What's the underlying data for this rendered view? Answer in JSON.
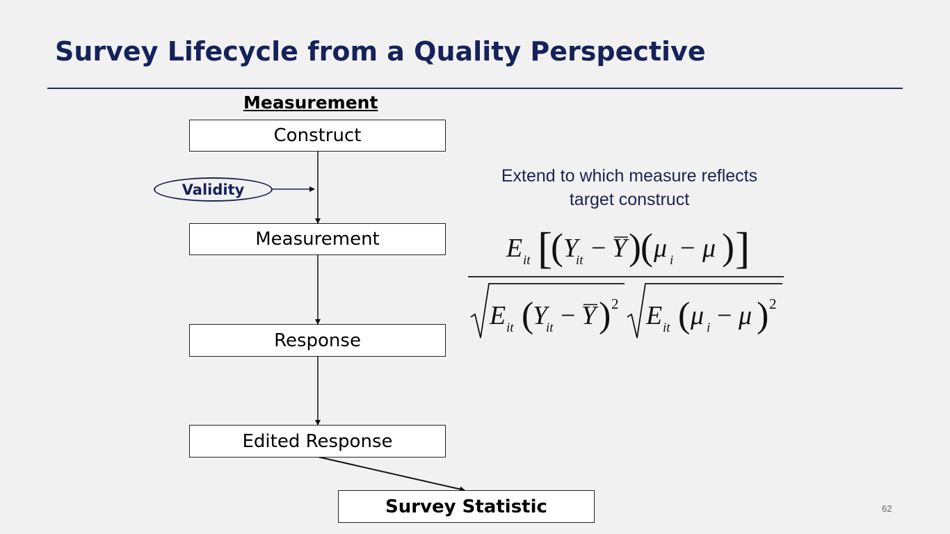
{
  "slide": {
    "title": "Survey Lifecycle from a Quality Perspective",
    "page_number": "62"
  },
  "diagram": {
    "heading": "Measurement",
    "boxes": {
      "construct": "Construct",
      "measurement": "Measurement",
      "response": "Response",
      "edited_response": "Edited Response",
      "survey_statistic": "Survey Statistic"
    },
    "annotation": "Validity"
  },
  "description": {
    "line1": "Extend to which measure reflects",
    "line2": "target construct"
  },
  "formula": {
    "E": "E",
    "it": "it",
    "Y": "Y",
    "Ybar": "Y",
    "mu": "μ",
    "i": "i",
    "minus": "−",
    "squared": "2"
  }
}
